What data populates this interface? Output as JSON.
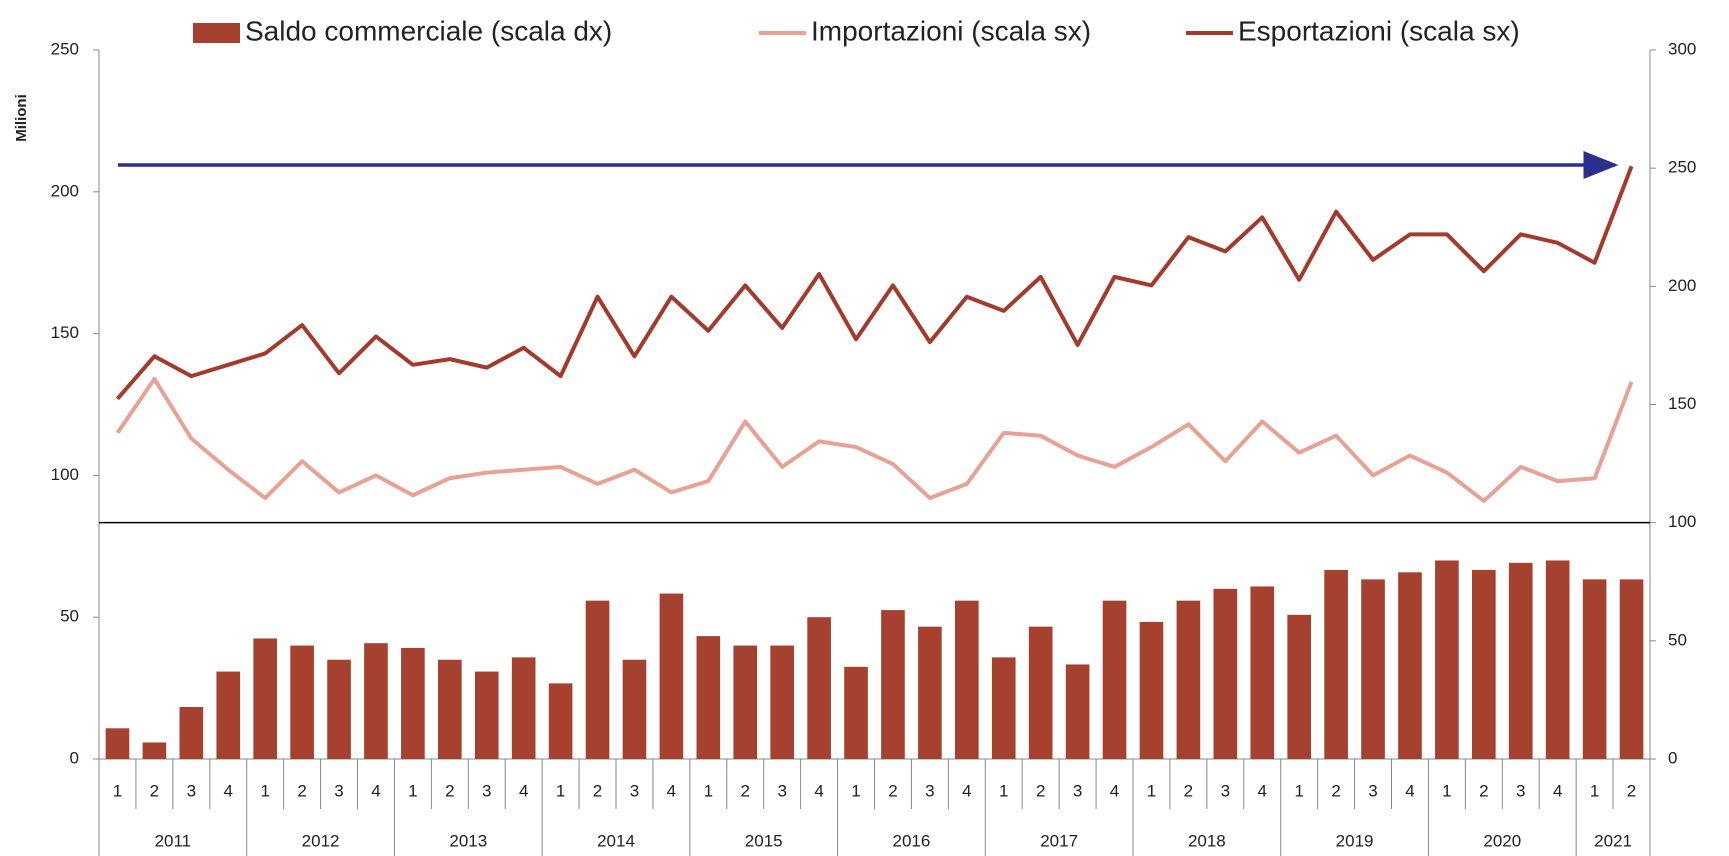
{
  "chart_data": {
    "type": "combo",
    "y_label": "Milioni",
    "categories": [
      "1",
      "2",
      "3",
      "4",
      "1",
      "2",
      "3",
      "4",
      "1",
      "2",
      "3",
      "4",
      "1",
      "2",
      "3",
      "4",
      "1",
      "2",
      "3",
      "4",
      "1",
      "2",
      "3",
      "4",
      "1",
      "2",
      "3",
      "4",
      "1",
      "2",
      "3",
      "4",
      "1",
      "2",
      "3",
      "4",
      "1",
      "2",
      "3",
      "4",
      "1",
      "2"
    ],
    "years": [
      "2011",
      "2012",
      "2013",
      "2014",
      "2015",
      "2016",
      "2017",
      "2018",
      "2019",
      "2020",
      "2021"
    ],
    "series": [
      {
        "name": "Saldo commerciale (scala dx)",
        "type": "bar",
        "axis": "y2",
        "color": "#a5412e",
        "values": [
          13,
          7,
          22,
          37,
          51,
          48,
          42,
          49,
          47,
          42,
          37,
          43,
          32,
          67,
          42,
          70,
          52,
          48,
          48,
          60,
          39,
          63,
          56,
          67,
          43,
          56,
          40,
          67,
          58,
          67,
          72,
          73,
          61,
          80,
          76,
          79,
          84,
          80,
          83,
          84,
          76,
          76
        ]
      },
      {
        "name": "Importazioni (scala sx)",
        "type": "line",
        "axis": "y",
        "color": "#e9a195",
        "values": [
          115,
          134,
          113,
          102,
          92,
          105,
          94,
          100,
          93,
          99,
          101,
          102,
          103,
          97,
          102,
          94,
          98,
          119,
          103,
          112,
          110,
          104,
          92,
          97,
          115,
          114,
          107,
          103,
          110,
          118,
          105,
          119,
          108,
          114,
          100,
          107,
          101,
          91,
          103,
          98,
          99,
          133
        ]
      },
      {
        "name": "Esportazioni (scala sx)",
        "type": "line",
        "axis": "y",
        "color": "#a43a2c",
        "values": [
          127,
          142,
          135,
          139,
          143,
          153,
          136,
          149,
          139,
          141,
          138,
          145,
          135,
          163,
          142,
          163,
          151,
          167,
          152,
          171,
          148,
          167,
          147,
          163,
          158,
          170,
          146,
          170,
          167,
          184,
          179,
          191,
          169,
          193,
          176,
          185,
          185,
          172,
          185,
          182,
          175,
          209
        ]
      }
    ],
    "ylim": [
      0,
      250
    ],
    "yticks": [
      0,
      50,
      100,
      150,
      200,
      250
    ],
    "y2lim": [
      0,
      300
    ],
    "y2ticks": [
      0,
      50,
      100,
      150,
      200,
      250,
      300
    ]
  }
}
